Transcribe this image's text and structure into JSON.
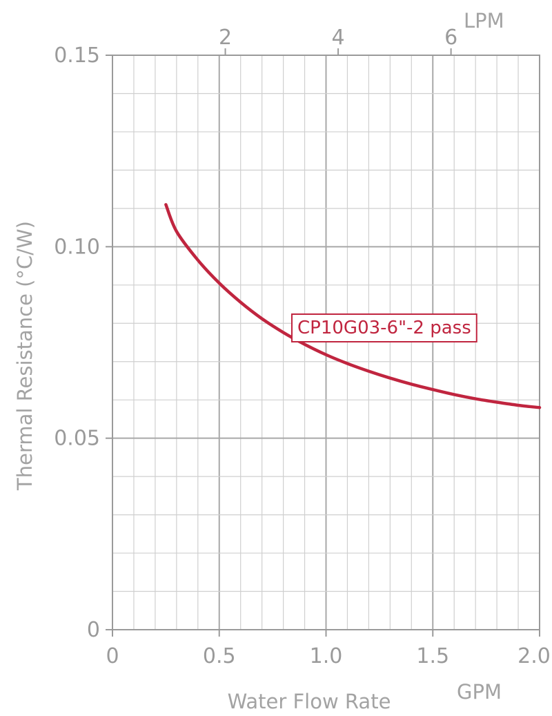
{
  "chart_data": {
    "type": "line",
    "xlabel": "Water Flow Rate",
    "x_unit": "GPM",
    "ylabel": "Thermal Resistance (°C/W)",
    "top_axis_unit": "LPM",
    "xlim": [
      0,
      2.0
    ],
    "ylim": [
      0,
      0.15
    ],
    "x_ticks": [
      "0",
      "0.5",
      "1.0",
      "1.5",
      "2.0"
    ],
    "y_ticks": [
      "0",
      "0.05",
      "0.10",
      "0.15"
    ],
    "top_axis_ticks": [
      2,
      4,
      6
    ],
    "top_axis_tick_labels": [
      "2",
      "4",
      "6"
    ],
    "gpm_per_lpm": 0.2642,
    "grid": true,
    "series": [
      {
        "name": "CP10G03-6\"-2 pass",
        "color": "#c0253f",
        "x": [
          0.25,
          0.3,
          0.4,
          0.5,
          0.6,
          0.7,
          0.8,
          0.9,
          1.0,
          1.1,
          1.2,
          1.3,
          1.4,
          1.5,
          1.6,
          1.7,
          1.8,
          1.9,
          2.0
        ],
        "y": [
          0.111,
          0.104,
          0.0965,
          0.0905,
          0.0855,
          0.0812,
          0.0776,
          0.0745,
          0.0718,
          0.0695,
          0.0675,
          0.0657,
          0.0641,
          0.0627,
          0.0614,
          0.0603,
          0.0594,
          0.0586,
          0.058
        ]
      }
    ]
  }
}
